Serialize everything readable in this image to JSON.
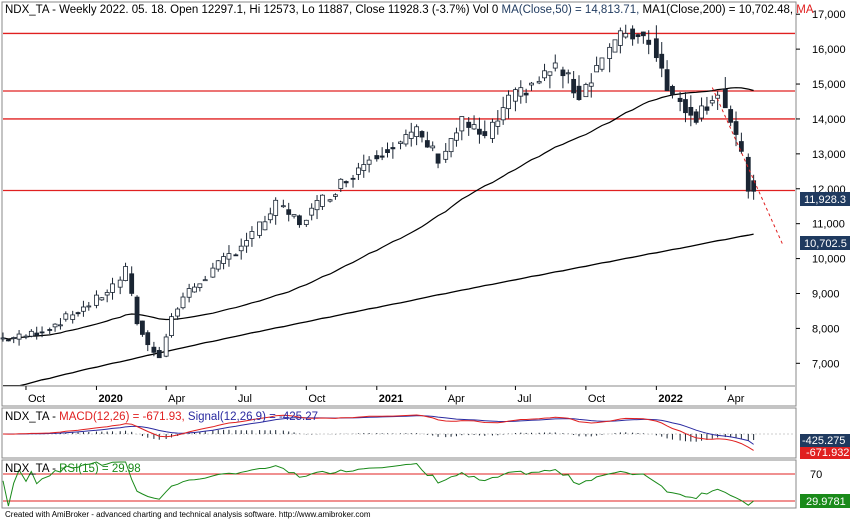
{
  "header": {
    "main_prefix": "NDX_TA - Weekly 2022. 05. 18. Open 12297.1, Hi 12573, Lo 11887, Close 11928.3 (-3.7%) Vol 0 ",
    "ma50_text": "MA(Close,50) = 14,813.71, ",
    "ma200_text": "MA1(Close,200) = 10,702.48, ",
    "extra_text": "MA",
    "macd_prefix": "NDX_TA - ",
    "macd_text": "MACD(12,26) = -671.93, ",
    "signal_text": "Signal(12,26,9) = -425.27",
    "rsi_prefix": "NDX_TA - ",
    "rsi_text": "RSI(15) = 29.98"
  },
  "footer": {
    "credit": "Created with AmiBroker - advanced charting and technical analysis software. http://www.amibroker.com"
  },
  "labels": {
    "last_close": "11,928.3",
    "ma200_value": "10,702.5",
    "signal_value": "-425.275",
    "macd_value": "-671.932",
    "rsi_level": "70",
    "rsi_value": "29.9781"
  },
  "colors": {
    "up_candle": "#ffffff",
    "down_candle": "#1a2533",
    "horizontal_line": "#e02020",
    "ma50": "#000000",
    "ma200": "#000000",
    "macd": "#e02020",
    "signal": "#2a2aa0",
    "rsi": "#1a8a1a",
    "label_bg": "#1f3a5f"
  },
  "chart_data": [
    {
      "type": "candlestick",
      "title": "NDX_TA - Weekly",
      "interval": "weekly",
      "y_ticks": [
        7000,
        8000,
        9000,
        10000,
        11000,
        12000,
        13000,
        14000,
        15000,
        16000,
        17000
      ],
      "y_tick_labels": [
        "7,000",
        "8,000",
        "9,000",
        "10,000",
        "11,000",
        "12,000",
        "13,000",
        "14,000",
        "15,000",
        "16,000",
        "17,000"
      ],
      "ylim": [
        6350,
        17350
      ],
      "x_tick_labels": [
        "Oct",
        "2020",
        "Apr",
        "Jul",
        "Oct",
        "2021",
        "Apr",
        "Jul",
        "Oct",
        "2022",
        "Apr"
      ],
      "x_tick_dates": [
        "2019-10",
        "2020-01",
        "2020-04",
        "2020-07",
        "2020-10",
        "2021-01",
        "2021-04",
        "2021-07",
        "2021-10",
        "2022-01",
        "2022-04"
      ],
      "horizontal_lines": [
        16450,
        14800,
        14000,
        11950
      ],
      "trendline": {
        "from": [
          "2022-03",
          14900
        ],
        "to": [
          "2022-06",
          10400
        ],
        "style": "dashed"
      },
      "candles_approx": [
        [
          "2019-09",
          7700,
          7750
        ],
        [
          "2019-10",
          7750,
          7950
        ],
        [
          "2019-11",
          7950,
          8300
        ],
        [
          "2019-12",
          8300,
          8700
        ],
        [
          "2020-01",
          8700,
          9200
        ],
        [
          "2020-02",
          9200,
          9650
        ],
        [
          "2020-02",
          9600,
          8200
        ],
        [
          "2020-03",
          8200,
          7500
        ],
        [
          "2020-03",
          7500,
          7250
        ],
        [
          "2020-04",
          7250,
          8300
        ],
        [
          "2020-04",
          8300,
          8900
        ],
        [
          "2020-05",
          8900,
          9500
        ],
        [
          "2020-06",
          9500,
          10100
        ],
        [
          "2020-07",
          10100,
          10700
        ],
        [
          "2020-08",
          10700,
          11500
        ],
        [
          "2020-09",
          11500,
          11050
        ],
        [
          "2020-10",
          11050,
          11700
        ],
        [
          "2020-11",
          11700,
          12300
        ],
        [
          "2020-12",
          12300,
          12900
        ],
        [
          "2021-01",
          12900,
          13300
        ],
        [
          "2021-02",
          13300,
          13600
        ],
        [
          "2021-03",
          13600,
          12900
        ],
        [
          "2021-04",
          12900,
          13900
        ],
        [
          "2021-05",
          13900,
          13450
        ],
        [
          "2021-06",
          13450,
          14500
        ],
        [
          "2021-07",
          14500,
          15000
        ],
        [
          "2021-08",
          15000,
          15500
        ],
        [
          "2021-09",
          15500,
          14700
        ],
        [
          "2021-10",
          14700,
          15800
        ],
        [
          "2021-11",
          15800,
          16500
        ],
        [
          "2021-12",
          16500,
          16300
        ],
        [
          "2022-01",
          16300,
          14600
        ],
        [
          "2022-02",
          14600,
          14100
        ],
        [
          "2022-03",
          14100,
          14800
        ],
        [
          "2022-04",
          14800,
          12900
        ],
        [
          "2022-05",
          12900,
          11930
        ]
      ],
      "series": [
        {
          "name": "MA(Close,50)",
          "last_value": 14813.71
        },
        {
          "name": "MA1(Close,200)",
          "last_value": 10702.48
        }
      ],
      "last_close": 11928.3
    },
    {
      "type": "line",
      "title": "MACD(12,26)",
      "series": [
        {
          "name": "MACD(12,26)",
          "last_value": -671.93
        },
        {
          "name": "Signal(12,26,9)",
          "last_value": -425.27
        }
      ]
    },
    {
      "type": "line",
      "title": "RSI(15)",
      "reference_level": 70,
      "series": [
        {
          "name": "RSI(15)",
          "last_value": 29.98
        }
      ]
    }
  ]
}
